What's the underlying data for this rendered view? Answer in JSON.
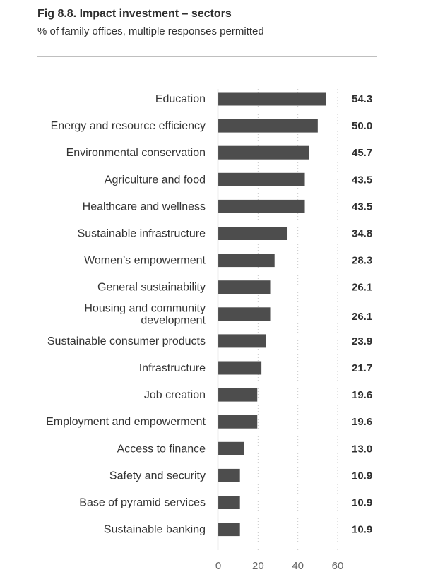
{
  "figure": {
    "title": "Fig 8.8. Impact investment – sectors",
    "subtitle": "% of family offices, multiple responses permitted"
  },
  "chart_data": {
    "type": "bar",
    "orientation": "horizontal",
    "categories": [
      "Education",
      "Energy and resource efficiency",
      "Environmental conservation",
      "Agriculture and food",
      "Healthcare and wellness",
      "Sustainable infrastructure",
      "Women’s empowerment",
      "General sustainability",
      "Housing and community development",
      "Sustainable consumer products",
      "Infrastructure",
      "Job creation",
      "Employment and empowerment",
      "Access to finance",
      "Safety and security",
      "Base of pyramid services",
      "Sustainable banking"
    ],
    "category_label_lines": [
      [
        "Education"
      ],
      [
        "Energy and resource efficiency"
      ],
      [
        "Environmental conservation"
      ],
      [
        "Agriculture and food"
      ],
      [
        "Healthcare and wellness"
      ],
      [
        "Sustainable infrastructure"
      ],
      [
        "Women’s empowerment"
      ],
      [
        "General sustainability"
      ],
      [
        "Housing and community",
        "development"
      ],
      [
        "Sustainable consumer products"
      ],
      [
        "Infrastructure"
      ],
      [
        "Job creation"
      ],
      [
        "Employment and empowerment"
      ],
      [
        "Access to finance"
      ],
      [
        "Safety and security"
      ],
      [
        "Base of pyramid services"
      ],
      [
        "Sustainable banking"
      ]
    ],
    "values": [
      54.3,
      50.0,
      45.7,
      43.5,
      43.5,
      34.8,
      28.3,
      26.1,
      26.1,
      23.9,
      21.7,
      19.6,
      19.6,
      13.0,
      10.9,
      10.9,
      10.9
    ],
    "value_labels": [
      "54.3",
      "50.0",
      "45.7",
      "43.5",
      "43.5",
      "34.8",
      "28.3",
      "26.1",
      "26.1",
      "23.9",
      "21.7",
      "19.6",
      "19.6",
      "13.0",
      "10.9",
      "10.9",
      "10.9"
    ],
    "xlim": [
      0,
      60
    ],
    "xticks": [
      0,
      20,
      40,
      60
    ],
    "xtick_labels": [
      "0",
      "20",
      "40",
      "60"
    ],
    "grid": "vertical dotted",
    "colors": {
      "bar": "#4d4d4d",
      "axis": "#a6a6a6",
      "grid": "#c8c8c8"
    }
  }
}
